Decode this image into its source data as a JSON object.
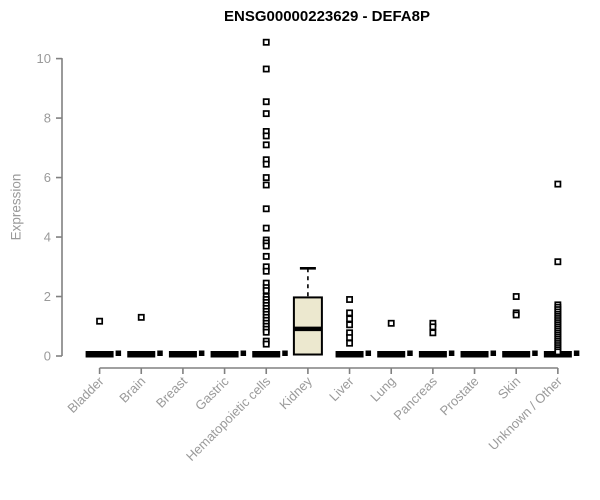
{
  "chart_data": {
    "type": "boxplot",
    "title": "ENSG00000223629 - DEFA8P",
    "ylabel": "Expression",
    "xlabel": "",
    "ylim": [
      0,
      10
    ],
    "yticks": [
      0,
      2,
      4,
      6,
      8,
      10
    ],
    "grid": false,
    "legend": null,
    "categories": [
      "Bladder",
      "Brain",
      "Breast",
      "Gastric",
      "Hematopoietic cells",
      "Kidney",
      "Liver",
      "Lung",
      "Pancreas",
      "Prostate",
      "Skin",
      "Unknown / Other"
    ],
    "boxes": [
      {
        "category": "Bladder",
        "q1": 0,
        "median": 0,
        "q3": 0,
        "whisker_low": 0,
        "whisker_high": 0,
        "zero_marker": true,
        "outliers": [
          1.17
        ]
      },
      {
        "category": "Brain",
        "q1": 0,
        "median": 0,
        "q3": 0,
        "whisker_low": 0,
        "whisker_high": 0,
        "zero_marker": true,
        "outliers": [
          1.3
        ]
      },
      {
        "category": "Breast",
        "q1": 0,
        "median": 0,
        "q3": 0,
        "whisker_low": 0,
        "whisker_high": 0,
        "zero_marker": true,
        "outliers": []
      },
      {
        "category": "Gastric",
        "q1": 0,
        "median": 0,
        "q3": 0,
        "whisker_low": 0,
        "whisker_high": 0,
        "zero_marker": true,
        "outliers": []
      },
      {
        "category": "Hematopoietic cells",
        "q1": 0,
        "median": 0,
        "q3": 0,
        "whisker_low": 0,
        "whisker_high": 0,
        "zero_marker": true,
        "outliers": [
          10.55,
          9.65,
          8.55,
          8.15,
          7.55,
          7.4,
          7.1,
          6.6,
          6.45,
          6.0,
          5.75,
          4.95,
          4.3,
          3.9,
          3.8,
          3.7,
          3.35,
          3.0,
          2.85,
          2.45,
          2.3,
          2.2,
          2.0,
          1.9,
          1.8,
          1.7,
          1.6,
          1.5,
          1.4,
          1.3,
          1.2,
          1.1,
          1.0,
          0.9,
          0.8,
          0.5,
          0.4
        ]
      },
      {
        "category": "Kidney",
        "q1": 0.05,
        "median": 0.91,
        "q3": 1.97,
        "whisker_low": 0.05,
        "whisker_high": 2.95,
        "zero_marker": false,
        "outliers": []
      },
      {
        "category": "Liver",
        "q1": 0,
        "median": 0,
        "q3": 0,
        "whisker_low": 0,
        "whisker_high": 0,
        "zero_marker": true,
        "outliers": [
          1.9,
          1.45,
          1.25,
          1.05,
          0.78,
          0.62,
          0.43
        ]
      },
      {
        "category": "Lung",
        "q1": 0,
        "median": 0,
        "q3": 0,
        "whisker_low": 0,
        "whisker_high": 0,
        "zero_marker": true,
        "outliers": [
          1.1
        ]
      },
      {
        "category": "Pancreas",
        "q1": 0,
        "median": 0,
        "q3": 0,
        "whisker_low": 0,
        "whisker_high": 0,
        "zero_marker": true,
        "outliers": [
          1.1,
          0.98,
          0.78
        ]
      },
      {
        "category": "Prostate",
        "q1": 0,
        "median": 0,
        "q3": 0,
        "whisker_low": 0,
        "whisker_high": 0,
        "zero_marker": true,
        "outliers": []
      },
      {
        "category": "Skin",
        "q1": 0,
        "median": 0,
        "q3": 0,
        "whisker_low": 0,
        "whisker_high": 0,
        "zero_marker": true,
        "outliers": [
          2.0,
          1.45,
          1.38
        ]
      },
      {
        "category": "Unknown / Other",
        "q1": 0,
        "median": 0,
        "q3": 0,
        "whisker_low": 0,
        "whisker_high": 0,
        "zero_marker": true,
        "outliers": [
          5.78,
          3.17,
          1.72,
          1.64,
          1.56,
          1.48,
          1.4,
          1.33,
          1.26,
          1.19,
          1.12,
          1.05,
          0.98,
          0.91,
          0.84,
          0.77,
          0.7,
          0.63,
          0.56,
          0.49,
          0.42,
          0.35,
          0.28,
          0.21,
          0.14
        ]
      }
    ],
    "colors": {
      "box_fill": "#ece8cf",
      "box_border": "#000000",
      "median": "#000000",
      "axis": "#808080",
      "tick_label": "#9a9a9a",
      "title": "#000000",
      "outlier_fill": "#ffffff",
      "outlier_stroke": "#000000"
    }
  }
}
